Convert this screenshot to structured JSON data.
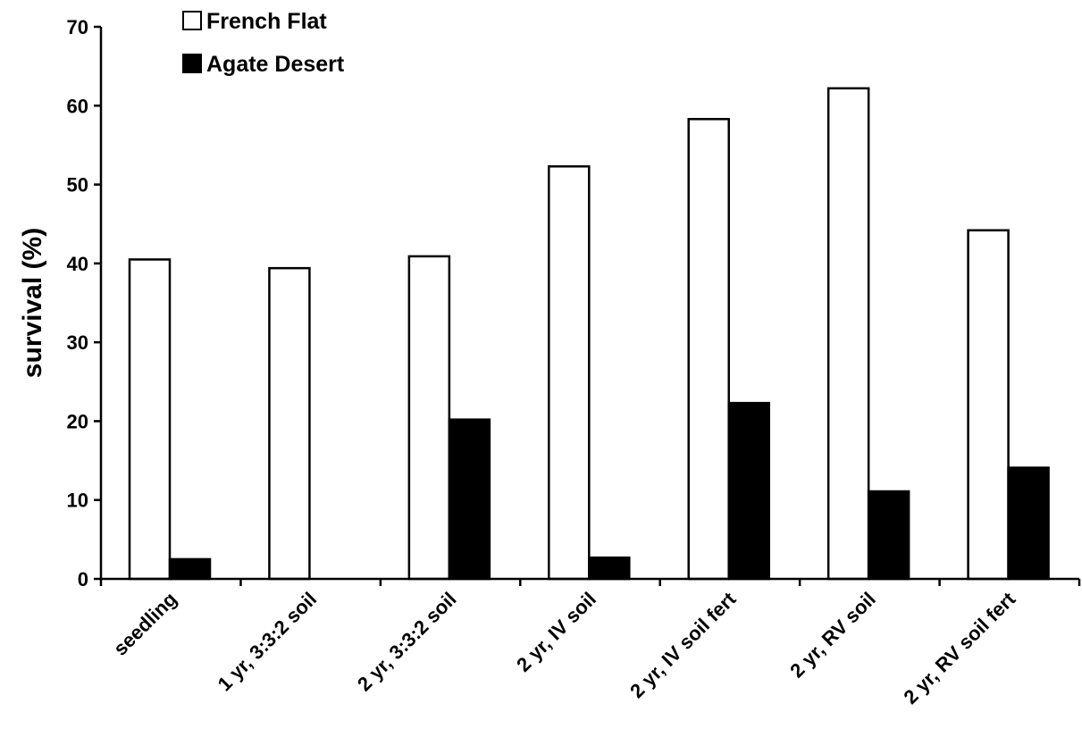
{
  "chart_data": {
    "type": "bar",
    "title": "",
    "xlabel": "",
    "ylabel": "survival (%)",
    "ylim": [
      0,
      70
    ],
    "yticks": [
      0,
      10,
      20,
      30,
      40,
      50,
      60,
      70
    ],
    "grid": false,
    "legend_position": "top-left",
    "categories": [
      "seedling",
      "1 yr, 3:3:2 soil",
      "2 yr, 3:3:2 soil",
      "2 yr, IV soil",
      "2 yr, IV soil fert",
      "2 yr, RV soil",
      "2 yr, RV soil fert"
    ],
    "series": [
      {
        "name": "French Flat",
        "color": "#ffffff",
        "values": [
          40.5,
          39.4,
          40.9,
          52.3,
          58.3,
          62.2,
          44.2
        ]
      },
      {
        "name": "Agate Desert",
        "color": "#000000",
        "values": [
          2.5,
          0,
          20.2,
          2.7,
          22.3,
          11.1,
          14.1
        ]
      }
    ]
  }
}
